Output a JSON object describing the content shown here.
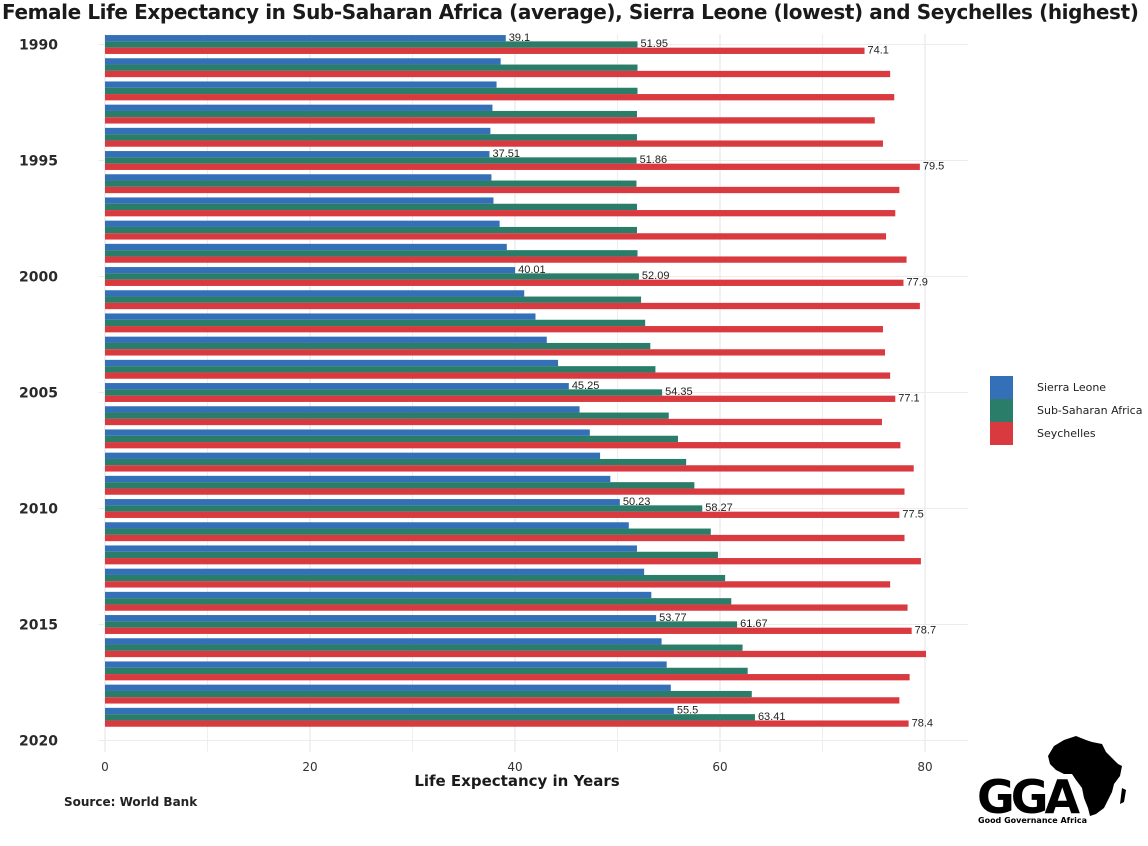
{
  "chart_data": {
    "type": "bar",
    "orientation": "horizontal",
    "title": "Female Life Expectancy in Sub-Saharan Africa (average), Sierra Leone (lowest) and Seychelles (highest)",
    "xlabel": "Life Expectancy in Years",
    "ylabel": "",
    "xlim": [
      0,
      82
    ],
    "x_ticks": [
      "0",
      "20",
      "40",
      "60",
      "80"
    ],
    "y_tick_labels": [
      "1990",
      "1995",
      "2000",
      "2005",
      "2010",
      "2015",
      "2020"
    ],
    "categories": [
      1990,
      1991,
      1992,
      1993,
      1994,
      1995,
      1996,
      1997,
      1998,
      1999,
      2000,
      2001,
      2002,
      2003,
      2004,
      2005,
      2006,
      2007,
      2008,
      2009,
      2010,
      2011,
      2012,
      2013,
      2014,
      2015,
      2016,
      2017,
      2018,
      2019
    ],
    "series": [
      {
        "name": "Sierra Leone",
        "color": "#3370b8",
        "values": [
          39.1,
          38.6,
          38.2,
          37.8,
          37.6,
          37.51,
          37.7,
          37.9,
          38.5,
          39.2,
          40.01,
          40.9,
          42.0,
          43.1,
          44.2,
          45.25,
          46.3,
          47.3,
          48.3,
          49.3,
          50.23,
          51.1,
          51.9,
          52.6,
          53.3,
          53.77,
          54.3,
          54.8,
          55.2,
          55.5
        ]
      },
      {
        "name": "Sub-Saharan Africa",
        "color": "#2a7d68",
        "values": [
          51.95,
          51.95,
          51.95,
          51.9,
          51.9,
          51.86,
          51.85,
          51.9,
          51.9,
          51.95,
          52.09,
          52.3,
          52.7,
          53.2,
          53.7,
          54.35,
          55.0,
          55.9,
          56.7,
          57.5,
          58.27,
          59.1,
          59.8,
          60.5,
          61.1,
          61.67,
          62.2,
          62.7,
          63.1,
          63.41
        ]
      },
      {
        "name": "Seychelles",
        "color": "#d93a40",
        "values": [
          74.1,
          76.6,
          77.0,
          75.1,
          75.9,
          79.5,
          77.5,
          77.1,
          76.2,
          78.2,
          77.9,
          79.5,
          75.9,
          76.1,
          76.6,
          77.1,
          75.8,
          77.6,
          78.9,
          78.0,
          77.5,
          78.0,
          79.6,
          76.6,
          78.3,
          78.7,
          80.1,
          78.5,
          77.5,
          78.4
        ]
      }
    ],
    "data_labels": [
      {
        "year": 1990,
        "labels": [
          "39.1",
          "51.95",
          "74.1"
        ]
      },
      {
        "year": 1995,
        "labels": [
          "37.51",
          "51.86",
          "79.5"
        ]
      },
      {
        "year": 2000,
        "labels": [
          "40.01",
          "52.09",
          "77.9"
        ]
      },
      {
        "year": 2005,
        "labels": [
          "45.25",
          "54.35",
          "77.1"
        ]
      },
      {
        "year": 2010,
        "labels": [
          "50.23",
          "58.27",
          "77.5"
        ]
      },
      {
        "year": 2015,
        "labels": [
          "53.77",
          "61.67",
          "78.7"
        ]
      },
      {
        "year": 2019,
        "labels": [
          "55.5",
          "63.41",
          "78.4"
        ]
      }
    ],
    "grid": true,
    "legend_position": "right"
  },
  "legend": {
    "items": [
      {
        "label": "Sierra Leone",
        "color": "#3370b8"
      },
      {
        "label": "Sub-Saharan Africa",
        "color": "#2a7d68"
      },
      {
        "label": "Seychelles",
        "color": "#d93a40"
      }
    ]
  },
  "footer": {
    "source": "Source: World Bank"
  },
  "logo": {
    "letters": "GGA",
    "subtitle": "Good Governance Africa"
  }
}
